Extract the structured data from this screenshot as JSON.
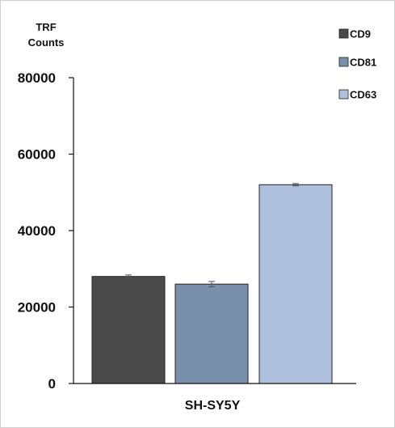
{
  "chart_data": {
    "type": "bar",
    "categories": [
      "SH-SY5Y"
    ],
    "series": [
      {
        "name": "CD9",
        "values": [
          28000
        ],
        "error": [
          400
        ],
        "color": "#4a4a4a"
      },
      {
        "name": "CD81",
        "values": [
          26000
        ],
        "error": [
          700
        ],
        "color": "#7a8fac"
      },
      {
        "name": "CD63",
        "values": [
          52000
        ],
        "error": [
          300
        ],
        "color": "#aec0de"
      }
    ],
    "title": "",
    "ylabel": [
      "TRF",
      "Counts"
    ],
    "xlabel": "SH-SY5Y",
    "ylim": [
      0,
      80000
    ],
    "yticks": [
      0,
      20000,
      40000,
      60000,
      80000
    ],
    "ytick_labels": [
      "0",
      "20000",
      "40000",
      "60000",
      "80000"
    ],
    "grid": false,
    "legend_position": "top-right"
  }
}
